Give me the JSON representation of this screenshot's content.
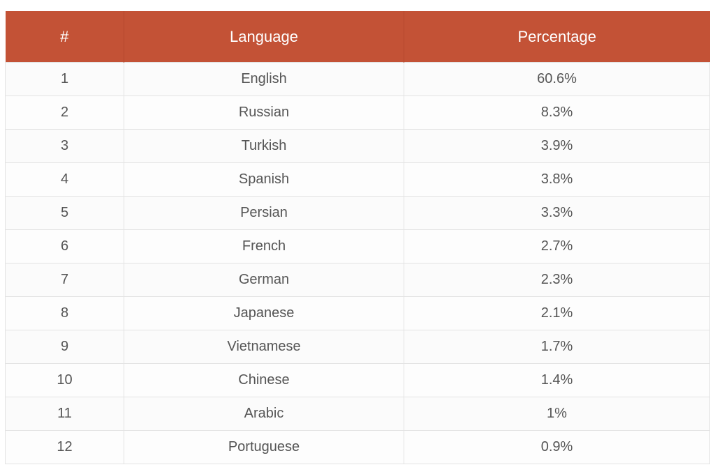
{
  "table": {
    "headers": {
      "rank": "#",
      "language": "Language",
      "percentage": "Percentage"
    },
    "rows": [
      {
        "rank": "1",
        "language": "English",
        "percentage": "60.6%"
      },
      {
        "rank": "2",
        "language": "Russian",
        "percentage": "8.3%"
      },
      {
        "rank": "3",
        "language": "Turkish",
        "percentage": "3.9%"
      },
      {
        "rank": "4",
        "language": "Spanish",
        "percentage": "3.8%"
      },
      {
        "rank": "5",
        "language": "Persian",
        "percentage": "3.3%"
      },
      {
        "rank": "6",
        "language": "French",
        "percentage": "2.7%"
      },
      {
        "rank": "7",
        "language": "German",
        "percentage": "2.3%"
      },
      {
        "rank": "8",
        "language": "Japanese",
        "percentage": "2.1%"
      },
      {
        "rank": "9",
        "language": "Vietnamese",
        "percentage": "1.7%"
      },
      {
        "rank": "10",
        "language": "Chinese",
        "percentage": "1.4%"
      },
      {
        "rank": "11",
        "language": "Arabic",
        "percentage": "1%"
      },
      {
        "rank": "12",
        "language": "Portuguese",
        "percentage": "0.9%"
      }
    ]
  },
  "colors": {
    "header_bg": "#c35236",
    "header_text": "#ffffff",
    "cell_text": "#555555",
    "border": "#e3e3e3"
  }
}
